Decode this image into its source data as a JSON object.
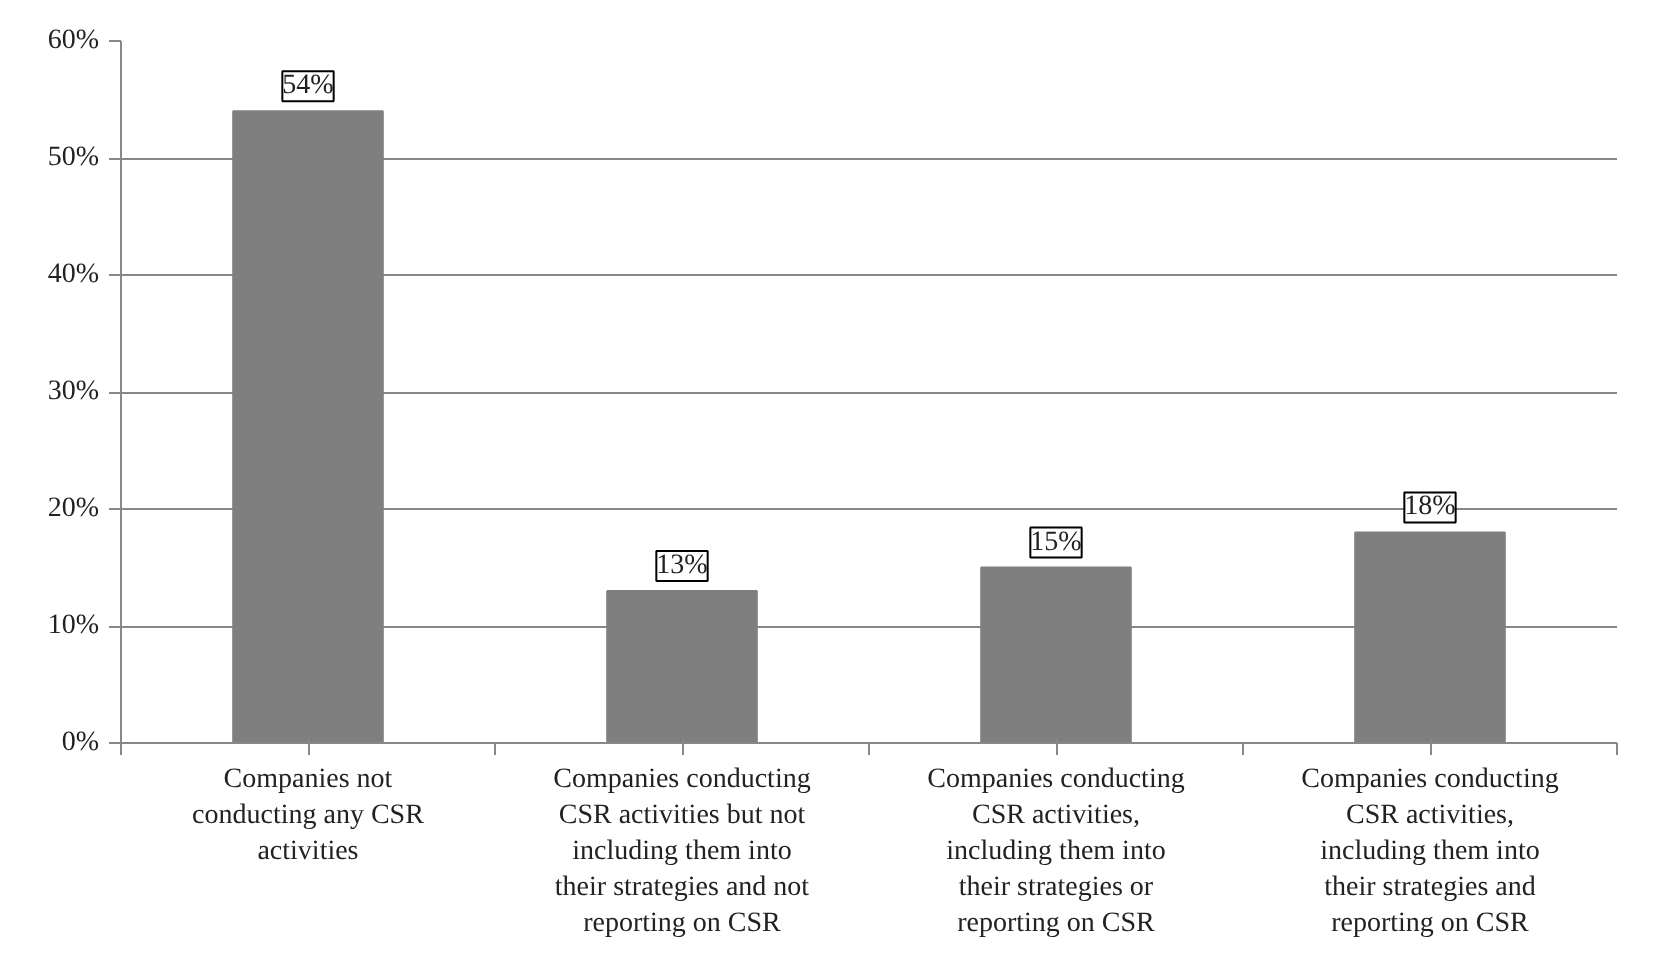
{
  "chart_data": {
    "type": "bar",
    "categories": [
      "Companies not\nconducting any CSR\nactivities",
      "Companies conducting\nCSR activities but not\nincluding them into\ntheir strategies and not\nreporting on CSR",
      "Companies conducting\nCSR activities,\nincluding them into\ntheir strategies or\nreporting on CSR",
      "Companies conducting\nCSR activities,\nincluding them into\ntheir strategies and\nreporting on CSR"
    ],
    "values": [
      54,
      13,
      15,
      18
    ],
    "value_labels": [
      "54%",
      "13%",
      "15%",
      "18%"
    ],
    "color": "#7f7f7f",
    "ylim": [
      0,
      60
    ],
    "yticks": [
      {
        "value": 0,
        "label": "0%"
      },
      {
        "value": 10,
        "label": "10%"
      },
      {
        "value": 20,
        "label": "20%"
      },
      {
        "value": 30,
        "label": "30%"
      },
      {
        "value": 40,
        "label": "40%"
      },
      {
        "value": 50,
        "label": "50%"
      },
      {
        "value": 60,
        "label": "60%"
      }
    ],
    "grid": "y"
  }
}
